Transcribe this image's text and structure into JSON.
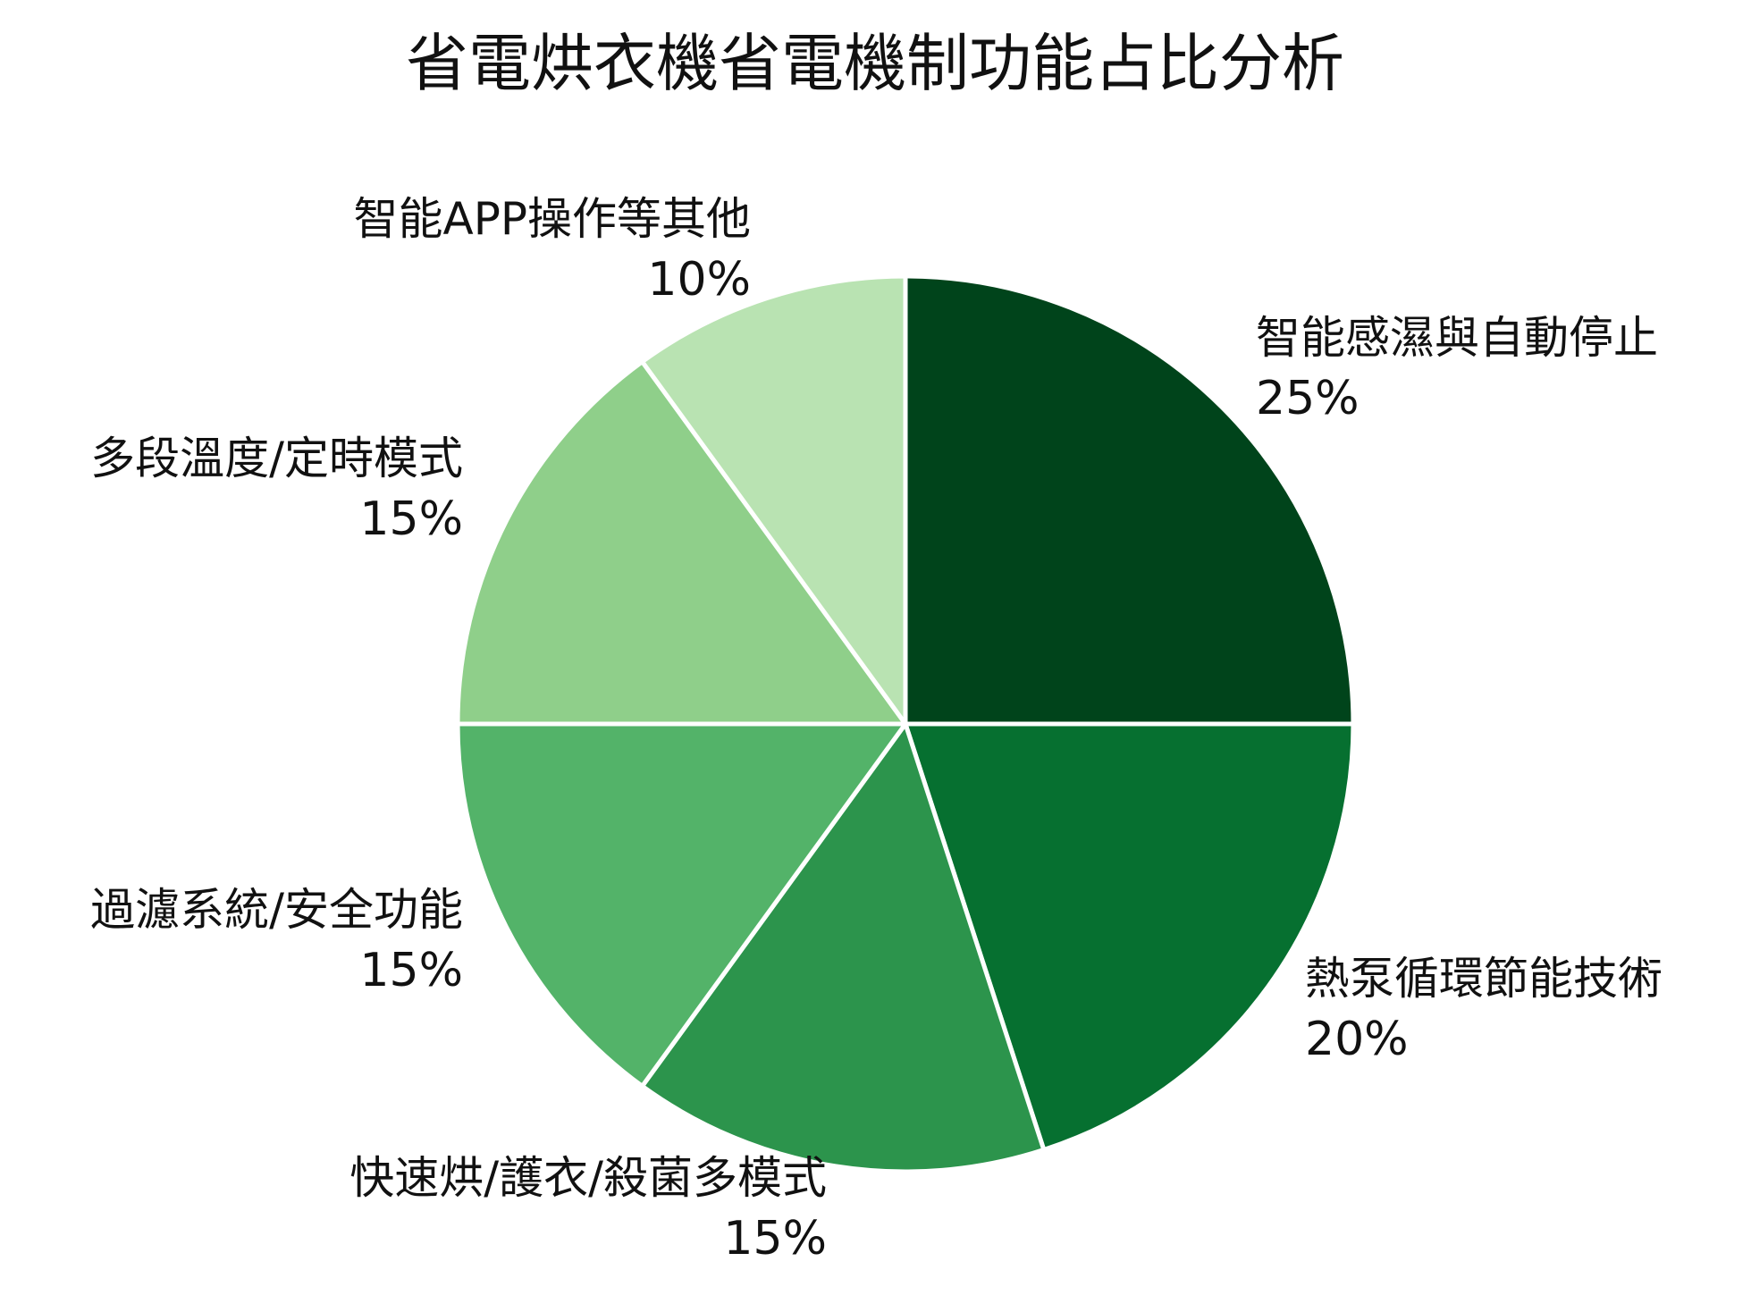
{
  "chart_data": {
    "type": "pie",
    "title": "省電烘衣機省電機制功能占比分析",
    "categories": [
      "智能感濕與自動停止",
      "熱泵循環節能技術",
      "快速烘/護衣/殺菌多模式",
      "過濾系統/安全功能",
      "多段溫度/定時模式",
      "智能APP操作等其他"
    ],
    "values": [
      25,
      20,
      15,
      15,
      15,
      10
    ],
    "value_labels": [
      "25%",
      "20%",
      "15%",
      "15%",
      "15%",
      "10%"
    ],
    "colors": [
      "#00441b",
      "#067030",
      "#2c944c",
      "#53b369",
      "#8fcf8a",
      "#b9e3b2"
    ],
    "start_angle": "12 o'clock",
    "direction": "clockwise"
  }
}
